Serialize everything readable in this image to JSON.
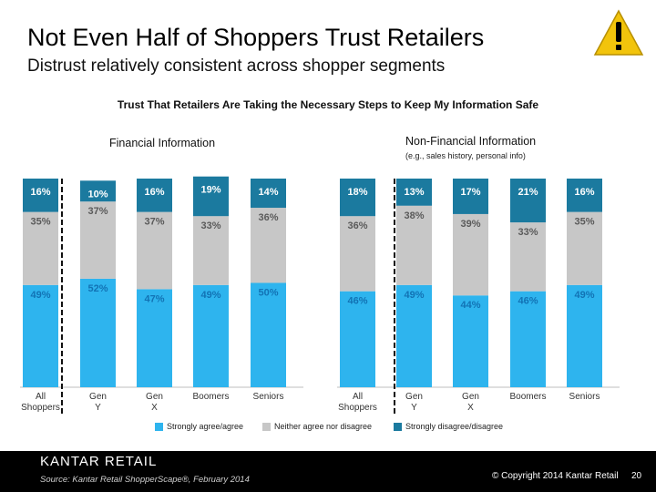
{
  "slide": {
    "title": "Not Even Half of Shoppers Trust Retailers",
    "subtitle": "Distrust relatively consistent across shopper segments",
    "warning_icon": "exclamation-warning-icon",
    "footer": {
      "brand": "KANTAR RETAIL",
      "source": "Source: Kantar Retail ShopperScape®, February 2014",
      "copyright": "© Copyright 2014 Kantar Retail",
      "page_number": "20"
    }
  },
  "chart_data": {
    "type": "bar",
    "stacked": true,
    "percent_stacked": true,
    "title": "Trust That Retailers Are Taking the Necessary Steps to Keep My Information Safe",
    "legend": {
      "placement": "bottom",
      "items": [
        {
          "name": "Strongly agree/agree",
          "color": "#2eb4ee"
        },
        {
          "name": "Neither agree nor disagree",
          "color": "#c7c7c7"
        },
        {
          "name": "Strongly disagree/disagree",
          "color": "#1b7a9f"
        }
      ]
    },
    "panels": [
      {
        "title": "Financial Information",
        "subtitle": "",
        "categories": [
          "All Shoppers",
          "Gen Y",
          "Gen X",
          "Boomers",
          "Seniors"
        ],
        "series": [
          {
            "name": "Strongly agree/agree",
            "values": [
              49,
              52,
              47,
              49,
              50
            ],
            "labels": [
              "49%",
              "52%",
              "47%",
              "49%",
              "50%"
            ]
          },
          {
            "name": "Neither agree nor disagree",
            "values": [
              35,
              37,
              37,
              33,
              36
            ],
            "labels": [
              "35%",
              "37%",
              "37%",
              "33%",
              "36%"
            ]
          },
          {
            "name": "Strongly disagree/disagree",
            "values": [
              16,
              10,
              16,
              19,
              14
            ],
            "labels": [
              "16%",
              "10%",
              "16%",
              "19%",
              "14%"
            ]
          }
        ]
      },
      {
        "title": "Non-Financial Information",
        "subtitle": "(e.g., sales history, personal info)",
        "categories": [
          "All Shoppers",
          "Gen Y",
          "Gen X",
          "Boomers",
          "Seniors"
        ],
        "series": [
          {
            "name": "Strongly agree/agree",
            "values": [
              46,
              49,
              44,
              46,
              49
            ],
            "labels": [
              "46%",
              "49%",
              "44%",
              "46%",
              "49%"
            ]
          },
          {
            "name": "Neither agree nor disagree",
            "values": [
              36,
              38,
              39,
              33,
              35
            ],
            "labels": [
              "36%",
              "38%",
              "39%",
              "33%",
              "35%"
            ]
          },
          {
            "name": "Strongly disagree/disagree",
            "values": [
              18,
              13,
              17,
              21,
              16
            ],
            "labels": [
              "18%",
              "13%",
              "17%",
              "21%",
              "16%"
            ]
          }
        ]
      }
    ]
  }
}
